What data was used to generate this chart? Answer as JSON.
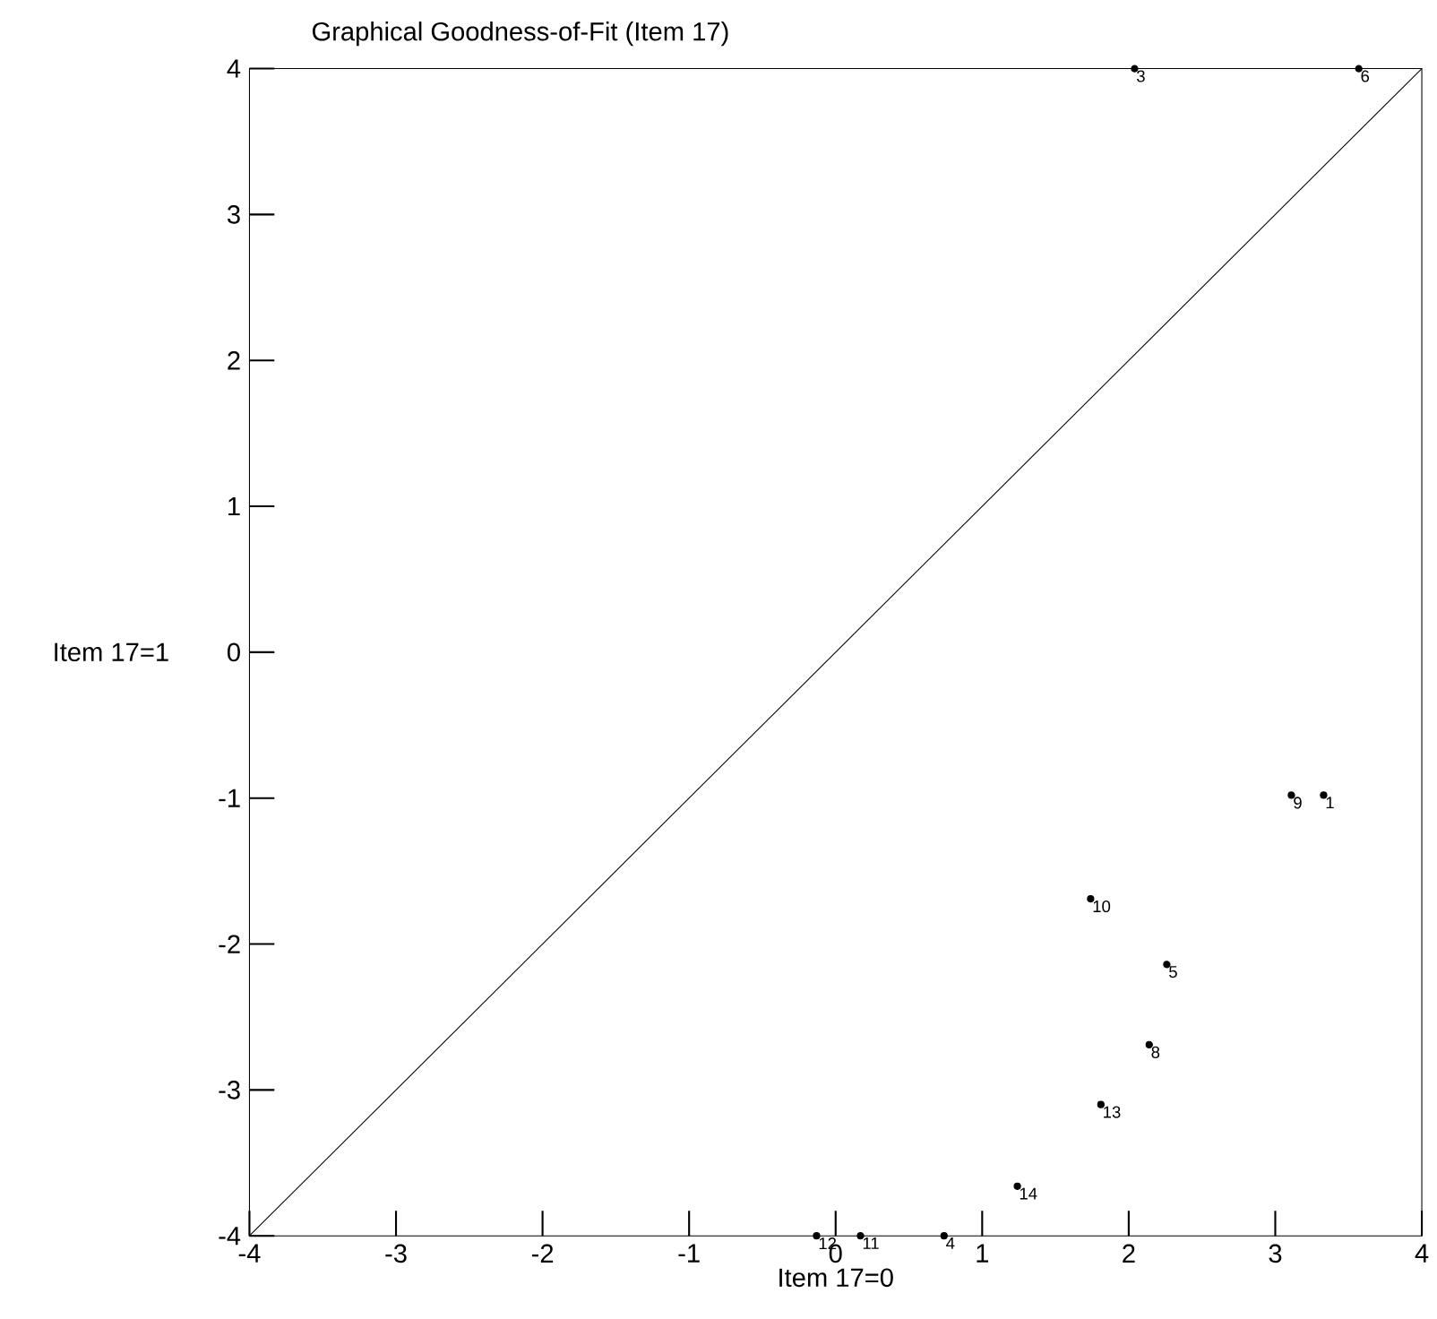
{
  "chart_data": {
    "type": "scatter",
    "title": "Graphical Goodness-of-Fit (Item 17)",
    "xlabel": "Item 17=0",
    "ylabel": "Item 17=1",
    "xlim": [
      -4,
      4
    ],
    "ylim": [
      -4,
      4
    ],
    "xticks": [
      -4,
      -3,
      -2,
      -1,
      0,
      1,
      2,
      3,
      4
    ],
    "yticks": [
      -4,
      -3,
      -2,
      -1,
      0,
      1,
      2,
      3,
      4
    ],
    "grid": false,
    "series": [
      {
        "marker": "circle",
        "color": "#000000",
        "x": [
          2.04,
          3.57,
          3.11,
          3.33,
          1.74,
          2.26,
          2.14,
          1.81,
          1.24,
          -0.13,
          0.17,
          0.74
        ],
        "values": [
          4,
          4,
          -0.98,
          -0.98,
          -1.69,
          -2.14,
          -2.69,
          -3.1,
          -3.66,
          -4,
          -4,
          -4
        ]
      },
      {
        "type": "line",
        "marker": "none",
        "color": "#000000",
        "x": [
          -4,
          4
        ],
        "values": [
          -4,
          4
        ]
      }
    ],
    "annotations": [
      {
        "text": "3",
        "x": 2.04,
        "y": 4
      },
      {
        "text": "6",
        "x": 3.57,
        "y": 4
      },
      {
        "text": "9",
        "x": 3.11,
        "y": -0.98
      },
      {
        "text": "1",
        "x": 3.33,
        "y": -0.98
      },
      {
        "text": "10",
        "x": 1.74,
        "y": -1.69
      },
      {
        "text": "5",
        "x": 2.26,
        "y": -2.14
      },
      {
        "text": "8",
        "x": 2.14,
        "y": -2.69
      },
      {
        "text": "13",
        "x": 1.81,
        "y": -3.1
      },
      {
        "text": "14",
        "x": 1.24,
        "y": -3.66
      },
      {
        "text": "12",
        "x": -0.13,
        "y": -4
      },
      {
        "text": "11",
        "x": 0.17,
        "y": -4
      },
      {
        "text": "4",
        "x": 0.74,
        "y": -4
      }
    ]
  }
}
